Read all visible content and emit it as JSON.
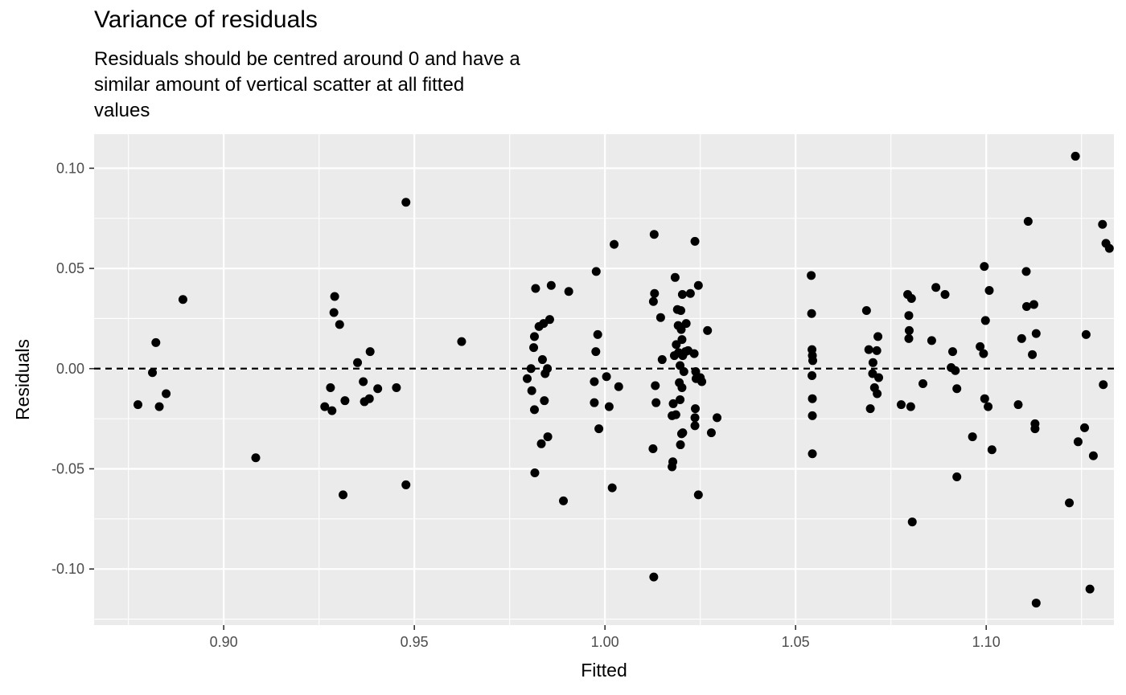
{
  "chart_data": {
    "type": "scatter",
    "title": "Variance of residuals",
    "subtitle": "Residuals should be centred around 0 and have a\nsimilar amount of vertical scatter at all fitted\nvalues",
    "xlabel": "Fitted",
    "ylabel": "Residuals",
    "xlim": [
      0.866,
      1.1335
    ],
    "ylim": [
      -0.128,
      0.117
    ],
    "x_ticks": [
      0.9,
      0.95,
      1.0,
      1.05,
      1.1
    ],
    "x_tick_labels": [
      "0.90",
      "0.95",
      "1.00",
      "1.05",
      "1.10"
    ],
    "y_ticks": [
      -0.1,
      -0.05,
      0.0,
      0.05,
      0.1
    ],
    "y_tick_labels": [
      "-0.10",
      "-0.05",
      "0.00",
      "0.05",
      "0.10"
    ],
    "grid": true,
    "reference_line": {
      "y": 0,
      "style": "dashed"
    },
    "colors": {
      "panel": "#ebebeb",
      "grid": "#ffffff",
      "points": "#000000"
    },
    "points": [
      [
        0.8775,
        -0.018
      ],
      [
        0.8813,
        -0.002
      ],
      [
        0.8822,
        0.013
      ],
      [
        0.8831,
        -0.019
      ],
      [
        0.8849,
        -0.0125
      ],
      [
        0.8893,
        0.0345
      ],
      [
        0.9084,
        -0.0445
      ],
      [
        0.9265,
        -0.019
      ],
      [
        0.928,
        -0.0095
      ],
      [
        0.9284,
        -0.021
      ],
      [
        0.9289,
        0.028
      ],
      [
        0.9291,
        0.036
      ],
      [
        0.9304,
        0.022
      ],
      [
        0.9313,
        -0.063
      ],
      [
        0.9318,
        -0.016
      ],
      [
        0.9351,
        0.003
      ],
      [
        0.9366,
        -0.0065
      ],
      [
        0.9369,
        -0.0165
      ],
      [
        0.9382,
        -0.015
      ],
      [
        0.9384,
        0.0085
      ],
      [
        0.9404,
        -0.01
      ],
      [
        0.9453,
        -0.0095
      ],
      [
        0.9478,
        0.083
      ],
      [
        0.9478,
        -0.058
      ],
      [
        0.9624,
        0.0135
      ],
      [
        0.9796,
        -0.005
      ],
      [
        0.9806,
        0.0
      ],
      [
        0.9808,
        -0.011
      ],
      [
        0.9813,
        0.0105
      ],
      [
        0.9815,
        0.016
      ],
      [
        0.9815,
        -0.0205
      ],
      [
        0.9816,
        -0.052
      ],
      [
        0.9818,
        0.04
      ],
      [
        0.9827,
        0.021
      ],
      [
        0.9833,
        -0.0375
      ],
      [
        0.9836,
        0.0045
      ],
      [
        0.9839,
        0.0225
      ],
      [
        0.9841,
        -0.016
      ],
      [
        0.9843,
        -0.0025
      ],
      [
        0.9849,
        0.0
      ],
      [
        0.985,
        -0.034
      ],
      [
        0.9855,
        0.0245
      ],
      [
        0.9859,
        0.0415
      ],
      [
        0.9891,
        -0.066
      ],
      [
        0.9905,
        0.0385
      ],
      [
        0.9972,
        -0.0065
      ],
      [
        0.9972,
        -0.017
      ],
      [
        0.9976,
        0.0085
      ],
      [
        0.9977,
        0.0485
      ],
      [
        0.9981,
        0.017
      ],
      [
        0.9984,
        -0.03
      ],
      [
        1.0004,
        -0.004
      ],
      [
        1.0011,
        -0.019
      ],
      [
        1.0019,
        -0.0595
      ],
      [
        1.0024,
        0.062
      ],
      [
        1.0036,
        -0.009
      ],
      [
        1.0126,
        -0.04
      ],
      [
        1.0127,
        0.0335
      ],
      [
        1.0128,
        -0.104
      ],
      [
        1.0129,
        0.067
      ],
      [
        1.013,
        0.0375
      ],
      [
        1.0132,
        -0.0085
      ],
      [
        1.0134,
        -0.017
      ],
      [
        1.0146,
        0.0255
      ],
      [
        1.015,
        0.0045
      ],
      [
        1.0176,
        -0.0235
      ],
      [
        1.0176,
        -0.049
      ],
      [
        1.0178,
        -0.0465
      ],
      [
        1.0179,
        -0.0175
      ],
      [
        1.0182,
        0.0065
      ],
      [
        1.0184,
        0.0455
      ],
      [
        1.0186,
        -0.023
      ],
      [
        1.0187,
        0.012
      ],
      [
        1.019,
        0.0295
      ],
      [
        1.0192,
        0.0215
      ],
      [
        1.0193,
        0.008
      ],
      [
        1.0195,
        -0.007
      ],
      [
        1.0197,
        0.0015
      ],
      [
        1.0197,
        -0.0155
      ],
      [
        1.0198,
        -0.038
      ],
      [
        1.0199,
        0.029
      ],
      [
        1.02,
        0.0195
      ],
      [
        1.0201,
        -0.0325
      ],
      [
        1.0202,
        -0.0095
      ],
      [
        1.0202,
        0.0145
      ],
      [
        1.0203,
        0.037
      ],
      [
        1.0204,
        0.0065
      ],
      [
        1.0204,
        -0.032
      ],
      [
        1.0207,
        -0.0015
      ],
      [
        1.0211,
        0.0085
      ],
      [
        1.0213,
        0.0225
      ],
      [
        1.0218,
        0.009
      ],
      [
        1.0224,
        0.0375
      ],
      [
        1.0234,
        0.0075
      ],
      [
        1.0236,
        0.0635
      ],
      [
        1.0236,
        -0.0245
      ],
      [
        1.0236,
        -0.0285
      ],
      [
        1.0237,
        -0.02
      ],
      [
        1.0238,
        -0.0015
      ],
      [
        1.0239,
        -0.005
      ],
      [
        1.0245,
        0.0415
      ],
      [
        1.0245,
        -0.063
      ],
      [
        1.025,
        -0.0045
      ],
      [
        1.0254,
        -0.0065
      ],
      [
        1.0269,
        0.019
      ],
      [
        1.0279,
        -0.032
      ],
      [
        1.0294,
        -0.0245
      ],
      [
        1.0541,
        0.0465
      ],
      [
        1.0542,
        0.0275
      ],
      [
        1.0543,
        0.0095
      ],
      [
        1.0543,
        -0.0035
      ],
      [
        1.0544,
        0.0065
      ],
      [
        1.0544,
        -0.015
      ],
      [
        1.0544,
        -0.0235
      ],
      [
        1.0544,
        -0.0425
      ],
      [
        1.0545,
        0.004
      ],
      [
        1.0686,
        0.029
      ],
      [
        1.0692,
        0.0095
      ],
      [
        1.0696,
        -0.02
      ],
      [
        1.0702,
        -0.0025
      ],
      [
        1.0703,
        0.003
      ],
      [
        1.0707,
        -0.0095
      ],
      [
        1.0713,
        0.009
      ],
      [
        1.0714,
        -0.0125
      ],
      [
        1.0716,
        0.016
      ],
      [
        1.0718,
        -0.0045
      ],
      [
        1.0777,
        -0.018
      ],
      [
        1.0794,
        0.037
      ],
      [
        1.0797,
        0.0265
      ],
      [
        1.0797,
        0.015
      ],
      [
        1.0798,
        0.019
      ],
      [
        1.0802,
        -0.019
      ],
      [
        1.0804,
        0.035
      ],
      [
        1.0806,
        -0.0765
      ],
      [
        1.0834,
        -0.0075
      ],
      [
        1.0857,
        0.014
      ],
      [
        1.0868,
        0.0405
      ],
      [
        1.0892,
        0.037
      ],
      [
        1.0908,
        0.0005
      ],
      [
        1.0912,
        0.0085
      ],
      [
        1.0919,
        -0.001
      ],
      [
        1.0923,
        -0.01
      ],
      [
        1.0923,
        -0.054
      ],
      [
        1.0964,
        -0.034
      ],
      [
        1.0984,
        0.011
      ],
      [
        1.0993,
        0.0075
      ],
      [
        1.0995,
        0.051
      ],
      [
        1.0996,
        -0.015
      ],
      [
        1.0998,
        0.024
      ],
      [
        1.1005,
        -0.019
      ],
      [
        1.1008,
        0.039
      ],
      [
        1.1015,
        -0.0405
      ],
      [
        1.1084,
        -0.018
      ],
      [
        1.1093,
        0.015
      ],
      [
        1.1105,
        0.0485
      ],
      [
        1.1106,
        0.031
      ],
      [
        1.111,
        0.0735
      ],
      [
        1.1121,
        0.007
      ],
      [
        1.1125,
        0.032
      ],
      [
        1.1128,
        -0.0275
      ],
      [
        1.1128,
        -0.03
      ],
      [
        1.1131,
        0.0175
      ],
      [
        1.1131,
        -0.117
      ],
      [
        1.1218,
        -0.067
      ],
      [
        1.1234,
        0.106
      ],
      [
        1.1241,
        -0.0365
      ],
      [
        1.1258,
        -0.0295
      ],
      [
        1.1262,
        0.017
      ],
      [
        1.1272,
        -0.11
      ],
      [
        1.1281,
        -0.0435
      ],
      [
        1.1305,
        0.072
      ],
      [
        1.1307,
        -0.008
      ],
      [
        1.1314,
        0.0625
      ],
      [
        1.1323,
        0.06
      ]
    ]
  }
}
